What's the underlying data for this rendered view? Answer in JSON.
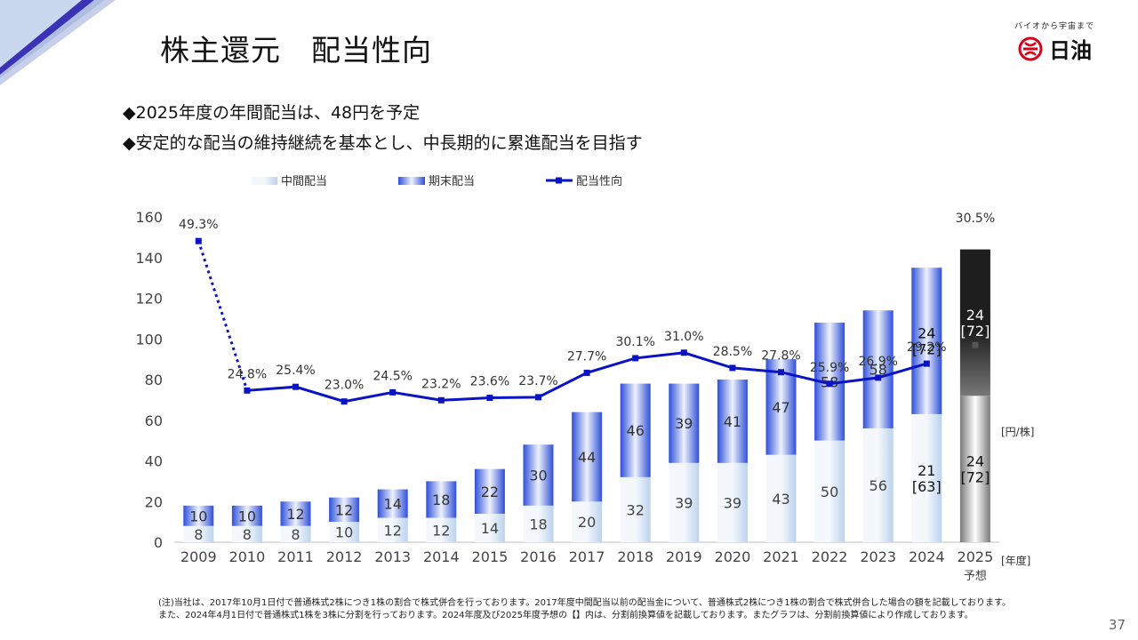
{
  "slide": {
    "title": "株主還元　配当性向",
    "bullets": [
      "◆2025年度の年間配当は、48円を予定",
      "◆安定的な配当の維持継続を基本とし、中長期的に累進配当を目指す"
    ],
    "footnote_lines": [
      "(注)当社は、2017年10月1日付で普通株式2株につき1株の割合で株式併合を行っております。2017年度中間配当以前の配当金について、普通株式2株につき1株の割合で株式併合した場合の額を記載しております。",
      "また、2024年4月1日付で普通株式1株を3株に分割を行っております。2024年度及び2025年度予想の【】内は、分割前換算値を記載しております。またグラフは、分割前換算値により作成しております。"
    ],
    "page_number": "37"
  },
  "logo": {
    "tagline": "バイオから宇宙まで",
    "name": "日油",
    "icon": "nof-logo-icon"
  },
  "chart_data": {
    "type": "bar",
    "stacked": true,
    "categories": [
      "2009",
      "2010",
      "2011",
      "2012",
      "2013",
      "2014",
      "2015",
      "2016",
      "2017",
      "2018",
      "2019",
      "2020",
      "2021",
      "2022",
      "2023",
      "2024",
      "2025"
    ],
    "category_sublabels": {
      "2025": "予想"
    },
    "series": [
      {
        "name": "中間配当",
        "kind": "bar",
        "values": [
          8,
          8,
          8,
          10,
          12,
          12,
          14,
          18,
          20,
          32,
          39,
          39,
          43,
          50,
          56,
          63,
          72
        ],
        "labels": [
          "8",
          "8",
          "8",
          "10",
          "12",
          "12",
          "14",
          "18",
          "20",
          "32",
          "39",
          "39",
          "43",
          "50",
          "56",
          "21\n[63]",
          "24\n[72]"
        ]
      },
      {
        "name": "期末配当",
        "kind": "bar",
        "values": [
          10,
          10,
          12,
          12,
          14,
          18,
          22,
          30,
          44,
          46,
          39,
          41,
          47,
          58,
          58,
          72,
          72
        ],
        "labels": [
          "10",
          "10",
          "12",
          "12",
          "14",
          "18",
          "22",
          "30",
          "44",
          "46",
          "39",
          "41",
          "47",
          "58",
          "58",
          "24\n[72]",
          "24\n[72]"
        ]
      },
      {
        "name": "配当性向",
        "kind": "line",
        "values": [
          49.3,
          24.8,
          25.4,
          23.0,
          24.5,
          23.2,
          23.6,
          23.7,
          27.7,
          30.1,
          31.0,
          28.5,
          27.8,
          25.9,
          26.9,
          29.2,
          30.5
        ],
        "labels": [
          "49.3%",
          "24.8%",
          "25.4%",
          "23.0%",
          "24.5%",
          "23.2%",
          "23.6%",
          "23.7%",
          "27.7%",
          "30.1%",
          "31.0%",
          "28.5%",
          "27.8%",
          "25.9%",
          "26.9%",
          "29.2%",
          "30.5%"
        ]
      }
    ],
    "y_ticks": [
      "0",
      "20",
      "40",
      "60",
      "80",
      "100",
      "120",
      "140",
      "160"
    ],
    "ylim": [
      0,
      160
    ],
    "y_unit_label": "[円/株]",
    "x_unit_label": "[年度]",
    "legend_position": "top",
    "forecast_category": "2025",
    "colors": {
      "interim_light": "#f4f8fd",
      "interim_dark": "#bcd3ee",
      "final_light": "#eef2fc",
      "final_dark": "#2f4fd9",
      "line": "#0a14c4",
      "forecast_top": "#1e1e1e",
      "forecast_mid": "#ffffff",
      "forecast_bottom": "#7a7a7a"
    }
  }
}
